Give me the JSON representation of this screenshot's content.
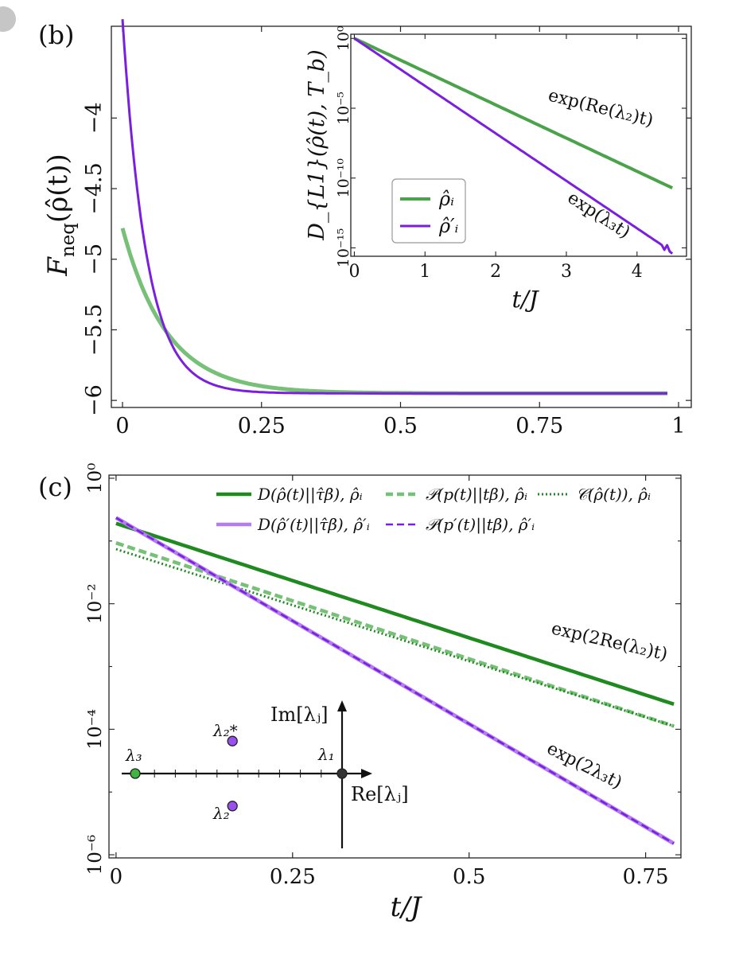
{
  "colors": {
    "green": "#4aa24a",
    "green_light": "#77c077",
    "green_dark": "#1f8a1f",
    "purple": "#7a1fe0",
    "purple_light": "#b47ef2",
    "lambda_green": "#3fb53f",
    "lambda_purple": "#9a4ff0"
  },
  "chart_data": [
    {
      "id": "b",
      "type": "line",
      "panel_label": "(b)",
      "ylabel_main": "F",
      "ylabel_sub": "neq",
      "ylabel_arg": "(ρ̂(t))",
      "xlim": [
        0,
        1
      ],
      "ylim": [
        -6.05,
        -3.35
      ],
      "xticks": [
        0,
        0.25,
        0.5,
        0.75,
        1
      ],
      "xtick_labels": [
        "0",
        "0.25",
        "0.5",
        "0.75",
        "1"
      ],
      "yticks": [
        -6,
        -5.5,
        -5,
        -4.5,
        -4
      ],
      "ytick_labels": [
        "−6",
        "−5.5",
        "−5",
        "−4.5",
        "−4"
      ],
      "series": [
        {
          "name": "ρ̂ᵢ",
          "color": "green_light",
          "width": 5,
          "y0": -4.78,
          "yinf": -5.95,
          "rate": 12.5,
          "x_end": 0.98
        },
        {
          "name": "ρ̂′ᵢ",
          "color": "purple",
          "width": 3,
          "y0": -3.3,
          "yinf": -5.95,
          "rate": 23,
          "x_end": 0.98
        }
      ]
    },
    {
      "id": "inset",
      "type": "line",
      "ylabel": "D_{L1}(ρ̂(t), T_b)",
      "xlabel": "t/J",
      "xlim": [
        -0.05,
        4.7
      ],
      "ylog": true,
      "ylim_exp": [
        -15.6,
        0.3
      ],
      "xticks": [
        0,
        1,
        2,
        3,
        4
      ],
      "xtick_labels": [
        "0",
        "1",
        "2",
        "3",
        "4"
      ],
      "yticks_exp": [
        0,
        -5,
        -10,
        -15
      ],
      "ytick_labels": [
        "10⁰",
        "10⁻⁵",
        "10⁻¹⁰",
        "10⁻¹⁵"
      ],
      "legend": [
        {
          "label": "ρ̂ᵢ",
          "color": "green"
        },
        {
          "label": "ρ̂′ᵢ",
          "color": "purple"
        }
      ],
      "series": [
        {
          "name": "ρ̂ᵢ",
          "color": "green",
          "log10_y0": 0,
          "log10_slope": -2.38,
          "x_end": 4.5
        },
        {
          "name": "ρ̂′ᵢ",
          "color": "purple",
          "log10_y0": 0,
          "log10_slope": -3.4,
          "x_end": 4.5
        }
      ],
      "annotations": [
        {
          "text": "exp(Re(λ₂)t)"
        },
        {
          "text": "exp(λ₃t)"
        }
      ]
    },
    {
      "id": "c",
      "type": "line",
      "panel_label": "(c)",
      "xlabel": "t/J",
      "xlim": [
        -0.01,
        0.8
      ],
      "ylog": true,
      "ylim_exp": [
        -6.05,
        0.05
      ],
      "xticks": [
        0,
        0.25,
        0.5,
        0.75
      ],
      "xtick_labels": [
        "0",
        "0.25",
        "0.5",
        "0.75"
      ],
      "yticks_exp": [
        0,
        -2,
        -4,
        -6
      ],
      "ytick_labels": [
        "10⁰",
        "10⁻²",
        "10⁻⁴",
        "10⁻⁶"
      ],
      "legend": [
        {
          "label": "D(ρ̂(t)||τ̂β), ρ̂ᵢ",
          "style": "solid",
          "color": "green_dark"
        },
        {
          "label": "𝒫(p(t)||tβ), ρ̂ᵢ",
          "style": "dashed",
          "color": "green_light"
        },
        {
          "label": "𝒞(ρ̂(t)), ρ̂ᵢ",
          "style": "dotted",
          "color": "green_dark"
        },
        {
          "label": "D(ρ̂′(t)||τ̂β), ρ̂′ᵢ",
          "style": "solid",
          "color": "purple_light"
        },
        {
          "label": "𝒫(p′(t)||tβ), ρ̂′ᵢ",
          "style": "dashed",
          "color": "purple"
        }
      ],
      "series": [
        {
          "name": "D(ρ̂(t)||τ̂β), ρ̂ᵢ",
          "color": "green_dark",
          "style": "solid",
          "width": 4.5,
          "log10_y0": -0.72,
          "log10_y1": -3.6,
          "x_end": 0.79
        },
        {
          "name": "𝒫(p(t)||tβ), ρ̂ᵢ",
          "color": "green_light",
          "style": "dashed",
          "width": 4.5,
          "log10_y0": -1.03,
          "log10_y1": -3.95,
          "x_end": 0.79
        },
        {
          "name": "𝒞(ρ̂(t)), ρ̂ᵢ",
          "color": "green_dark",
          "style": "dotted",
          "width": 3,
          "log10_y0": -1.13,
          "log10_y1": -3.95,
          "x_end": 0.79
        },
        {
          "name": "D(ρ̂′(t)||τ̂β), ρ̂′ᵢ",
          "color": "purple_light",
          "style": "solid",
          "width": 5,
          "log10_y0": -0.63,
          "log10_y1": -5.82,
          "x_end": 0.79
        },
        {
          "name": "𝒫(p′(t)||tβ), ρ̂′ᵢ",
          "color": "purple",
          "style": "dashed",
          "width": 2.5,
          "log10_y0": -0.63,
          "log10_y1": -5.82,
          "x_end": 0.79
        }
      ],
      "annotations": [
        {
          "text": "exp(2Re(λ₂)t)"
        },
        {
          "text": "exp(2λ₃t)"
        }
      ],
      "eigen_diagram": {
        "im_label": "Im[λⱼ]",
        "re_label": "Re[λⱼ]",
        "points": [
          {
            "name": "λ₁",
            "color": "#333333",
            "re": 0,
            "im": 0
          },
          {
            "name": "λ₂",
            "color": "lambda_purple",
            "re": -0.53,
            "im": -0.6
          },
          {
            "name": "λ₂*",
            "color": "lambda_purple",
            "re": -0.53,
            "im": 0.6
          },
          {
            "name": "λ₃",
            "color": "lambda_green",
            "re": -1.0,
            "im": 0
          }
        ]
      }
    }
  ]
}
